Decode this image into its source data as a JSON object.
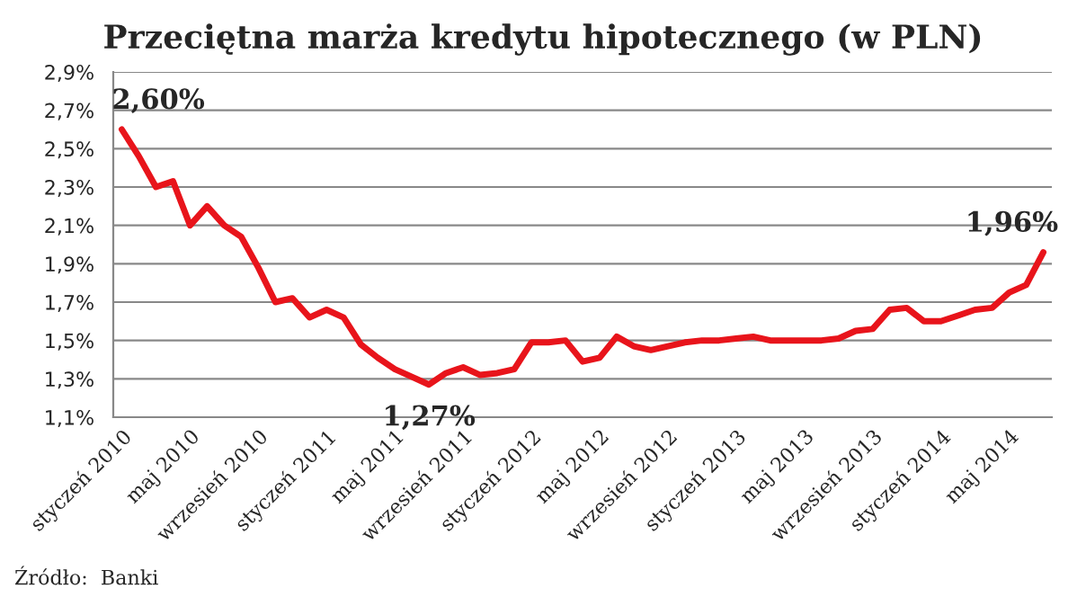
{
  "chart_data": {
    "type": "line",
    "title": "Przeciętna marża kredytu hipotecznego (w PLN)",
    "categories": [
      "styczeń 2010",
      null,
      null,
      null,
      "maj 2010",
      null,
      null,
      null,
      "wrzesień 2010",
      null,
      null,
      null,
      "styczeń 2011",
      null,
      null,
      null,
      "maj 2011",
      null,
      null,
      null,
      "wrzesień 2011",
      null,
      null,
      null,
      "styczeń 2012",
      null,
      null,
      null,
      "maj 2012",
      null,
      null,
      null,
      "wrzesień 2012",
      null,
      null,
      null,
      "styczeń 2013",
      null,
      null,
      null,
      "maj 2013",
      null,
      null,
      null,
      "wrzesień 2013",
      null,
      null,
      null,
      "styczeń 2014",
      null,
      null,
      null,
      "maj 2014",
      null,
      null
    ],
    "series": [
      {
        "color": "#e8141b",
        "values": [
          2.6,
          2.46,
          2.3,
          2.33,
          2.1,
          2.2,
          2.1,
          2.04,
          1.88,
          1.7,
          1.72,
          1.62,
          1.66,
          1.62,
          1.48,
          1.41,
          1.35,
          1.31,
          1.27,
          1.33,
          1.36,
          1.32,
          1.33,
          1.35,
          1.49,
          1.49,
          1.5,
          1.39,
          1.41,
          1.52,
          1.47,
          1.45,
          1.47,
          1.49,
          1.5,
          1.5,
          1.51,
          1.52,
          1.5,
          1.5,
          1.5,
          1.5,
          1.51,
          1.55,
          1.56,
          1.66,
          1.67,
          1.6,
          1.6,
          1.63,
          1.66,
          1.67,
          1.75,
          1.79,
          1.96
        ],
        "value_labels": [
          "2,60%",
          null,
          null,
          null,
          null,
          null,
          null,
          null,
          null,
          null,
          null,
          null,
          null,
          null,
          null,
          null,
          null,
          null,
          "1,27%",
          null,
          null,
          null,
          null,
          null,
          null,
          null,
          null,
          null,
          null,
          null,
          null,
          null,
          null,
          null,
          null,
          null,
          null,
          null,
          null,
          null,
          null,
          null,
          null,
          null,
          null,
          null,
          null,
          null,
          null,
          null,
          null,
          null,
          null,
          null,
          "1,96%"
        ]
      }
    ],
    "ylim": [
      1.1,
      2.9
    ],
    "yticks": [
      {
        "value": 1.1,
        "label": "1,1%"
      },
      {
        "value": 1.3,
        "label": "1,3%"
      },
      {
        "value": 1.5,
        "label": "1,5%"
      },
      {
        "value": 1.7,
        "label": "1,7%"
      },
      {
        "value": 1.9,
        "label": "1,9%"
      },
      {
        "value": 2.1,
        "label": "2,1%"
      },
      {
        "value": 2.3,
        "label": "2,3%"
      },
      {
        "value": 2.5,
        "label": "2,5%"
      },
      {
        "value": 2.7,
        "label": "2,7%"
      },
      {
        "value": 2.9,
        "label": "2,9%"
      }
    ],
    "grid": "y",
    "legend": false,
    "marker": "none",
    "line_style": "solid",
    "annotations": [
      "Źródło:  Banki"
    ]
  }
}
